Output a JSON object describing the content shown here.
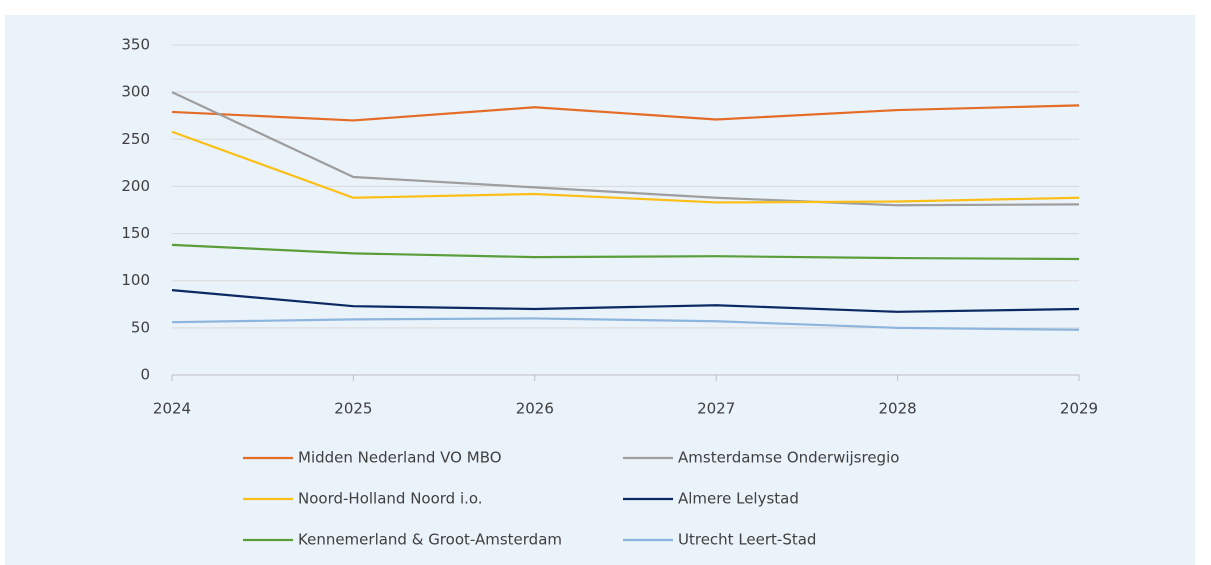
{
  "chart_data": {
    "type": "line",
    "categories": [
      "2024",
      "2025",
      "2026",
      "2027",
      "2028",
      "2029"
    ],
    "series": [
      {
        "name": "Midden Nederland VO MBO",
        "color": "#e46c26",
        "values": [
          279,
          270,
          284,
          271,
          281,
          286
        ]
      },
      {
        "name": "Amsterdamse Onderwijsregio",
        "color": "#9e9e9e",
        "values": [
          300,
          210,
          199,
          188,
          180,
          181
        ]
      },
      {
        "name": "Noord-Holland Noord i.o.",
        "color": "#fbbf17",
        "values": [
          258,
          188,
          192,
          183,
          184,
          188
        ]
      },
      {
        "name": "Almere Lelystad",
        "color": "#0c2a62",
        "values": [
          90,
          73,
          70,
          74,
          67,
          70
        ]
      },
      {
        "name": "Kennemerland & Groot-Amsterdam",
        "color": "#5a9e3a",
        "values": [
          138,
          129,
          125,
          126,
          124,
          123
        ]
      },
      {
        "name": "Utrecht Leert-Stad",
        "color": "#8db4dd",
        "values": [
          56,
          59,
          60,
          57,
          50,
          48
        ]
      }
    ],
    "ylim": [
      0,
      350
    ],
    "yticks": [
      0,
      50,
      100,
      150,
      200,
      250,
      300,
      350
    ],
    "grid": true
  }
}
